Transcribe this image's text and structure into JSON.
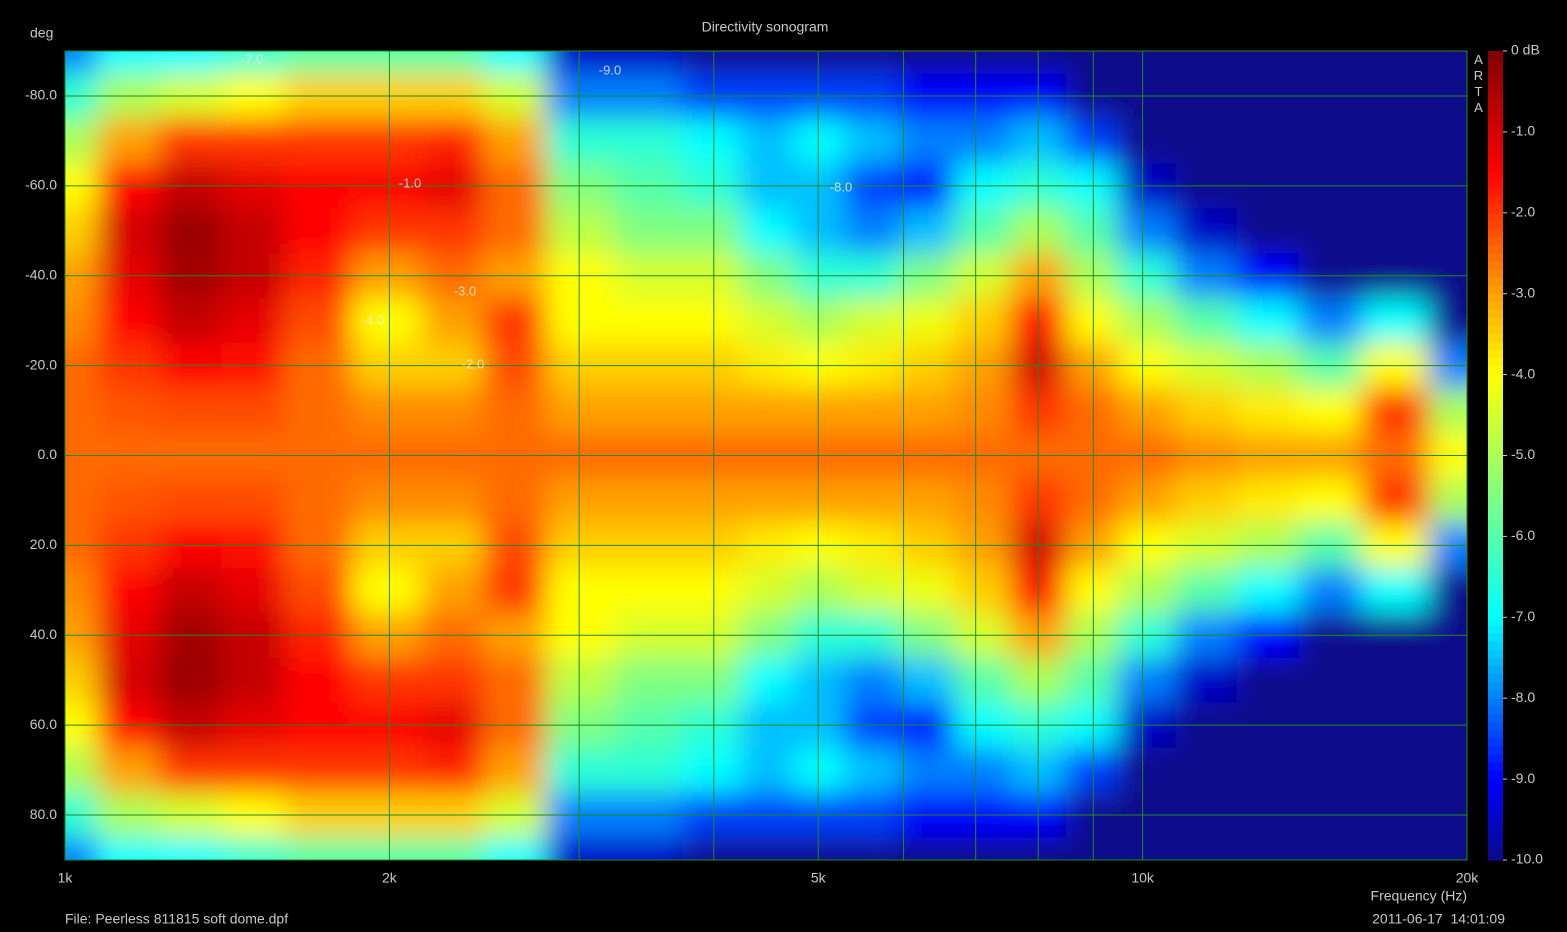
{
  "chart_data": {
    "type": "heatmap",
    "title": "Directivity sonogram",
    "y_label": "deg",
    "x_label": "Frequency (Hz)",
    "file": "File: Peerless 811815 soft dome.dpf",
    "timestamp": "2011-06-17  14:01:09",
    "brand": "ARTA",
    "x_scale": "log",
    "xlim": [
      1000,
      20000
    ],
    "ylim": [
      -90,
      90
    ],
    "zlim": [
      -10,
      0
    ],
    "grid": true,
    "xticks": [
      {
        "value": 1000,
        "label": "1k"
      },
      {
        "value": 2000,
        "label": "2k"
      },
      {
        "value": 5000,
        "label": "5k"
      },
      {
        "value": 10000,
        "label": "10k"
      },
      {
        "value": 20000,
        "label": "20k"
      }
    ],
    "xminor": [
      3000,
      4000,
      6000,
      7000,
      8000,
      9000
    ],
    "yticks": [
      {
        "value": -80,
        "label": "-80.0"
      },
      {
        "value": -60,
        "label": "-60.0"
      },
      {
        "value": -40,
        "label": "-40.0"
      },
      {
        "value": -20,
        "label": "-20.0"
      },
      {
        "value": 0,
        "label": "0.0"
      },
      {
        "value": 20,
        "label": "20.0"
      },
      {
        "value": 40,
        "label": "40.0"
      },
      {
        "value": 60,
        "label": "60.0"
      },
      {
        "value": 80,
        "label": "80.0"
      }
    ],
    "zticks": [
      {
        "value": 0,
        "label": "0 dB"
      },
      {
        "value": -1,
        "label": "-1.0"
      },
      {
        "value": -2,
        "label": "-2.0"
      },
      {
        "value": -3,
        "label": "-3.0"
      },
      {
        "value": -4,
        "label": "-4.0"
      },
      {
        "value": -5,
        "label": "-5.0"
      },
      {
        "value": -6,
        "label": "-6.0"
      },
      {
        "value": -7,
        "label": "-7.0"
      },
      {
        "value": -8,
        "label": "-8.0"
      },
      {
        "value": -9,
        "label": "-9.0"
      },
      {
        "value": -10,
        "label": "-10.0"
      }
    ],
    "contour_labels": [
      "-7.0",
      "-9.0",
      "-1.0",
      "-8.0",
      "-3.0",
      "-4.0",
      "-2.0"
    ],
    "x": [
      1000,
      1150,
      1300,
      1500,
      1700,
      2000,
      2300,
      2600,
      3000,
      3500,
      4000,
      4500,
      5000,
      5600,
      6300,
      7100,
      8000,
      9000,
      10000,
      11500,
      13000,
      15000,
      17000,
      20000
    ],
    "y": [
      -90,
      -80,
      -70,
      -60,
      -50,
      -40,
      -30,
      -20,
      -10,
      0,
      10,
      20,
      30,
      40,
      50,
      60,
      70,
      80,
      90
    ],
    "z": [
      [
        -8,
        -6.5,
        -5,
        -4,
        -3.5,
        -3,
        -2.8,
        -2.5,
        -2.5,
        -2.5,
        -2.5,
        -2.5,
        -2.8,
        -3,
        -3.5,
        -4,
        -5,
        -6.5,
        -8
      ],
      [
        -7,
        -5,
        -3,
        -1.5,
        -1,
        -1.2,
        -1.5,
        -2,
        -2.3,
        -2.5,
        -2.3,
        -2,
        -1.5,
        -1.2,
        -1,
        -1.5,
        -3,
        -5,
        -7
      ],
      [
        -7,
        -4.5,
        -2,
        -0.8,
        -0.3,
        -0.4,
        -0.8,
        -1.5,
        -2.2,
        -2.5,
        -2.2,
        -1.5,
        -0.8,
        -0.4,
        -0.3,
        -0.8,
        -2,
        -4.5,
        -7
      ],
      [
        -6.5,
        -4,
        -2,
        -1.2,
        -0.8,
        -0.8,
        -1.2,
        -1.6,
        -2.2,
        -2.5,
        -2.2,
        -1.6,
        -1.2,
        -0.8,
        -0.8,
        -1.2,
        -2,
        -4,
        -6.5
      ],
      [
        -6,
        -3.5,
        -2,
        -1.5,
        -1.5,
        -1.8,
        -2.2,
        -2.5,
        -2.5,
        -2.5,
        -2.5,
        -2.5,
        -2.2,
        -1.8,
        -1.5,
        -1.5,
        -2,
        -3.5,
        -6
      ],
      [
        -6,
        -3.5,
        -2,
        -1.5,
        -2,
        -3,
        -4,
        -3.5,
        -2.8,
        -2.5,
        -2.8,
        -3.5,
        -4,
        -3,
        -2,
        -1.5,
        -2,
        -3.5,
        -6
      ],
      [
        -6,
        -3.5,
        -1.8,
        -1.2,
        -2,
        -2.5,
        -3,
        -3.5,
        -2.8,
        -2.5,
        -2.8,
        -3.5,
        -3,
        -2.5,
        -2,
        -1.2,
        -1.8,
        -3.5,
        -6
      ],
      [
        -7,
        -4.5,
        -3,
        -2.5,
        -2.5,
        -3,
        -2,
        -2.2,
        -2.5,
        -2.5,
        -2.5,
        -2.2,
        -2,
        -3,
        -2.5,
        -2.5,
        -3,
        -4.5,
        -7
      ],
      [
        -9.5,
        -8,
        -6.5,
        -5.5,
        -4.8,
        -4,
        -4,
        -3.5,
        -3,
        -2.5,
        -3,
        -3.5,
        -4,
        -4,
        -4.8,
        -5.5,
        -6.5,
        -8,
        -9.5
      ],
      [
        -9.5,
        -8,
        -6.5,
        -6,
        -5.5,
        -4.5,
        -4,
        -3.5,
        -3,
        -2.5,
        -3,
        -3.5,
        -4,
        -4.5,
        -5.5,
        -6,
        -6.5,
        -8,
        -9.5
      ],
      [
        -10,
        -8.5,
        -7,
        -6.5,
        -5.5,
        -4.5,
        -4,
        -3.5,
        -3,
        -2.5,
        -3,
        -3.5,
        -4,
        -4.5,
        -5.5,
        -6.5,
        -7,
        -8.5,
        -10
      ],
      [
        -10,
        -8.5,
        -7.5,
        -7.5,
        -7,
        -5.5,
        -4.5,
        -3.8,
        -3,
        -2.5,
        -3,
        -3.8,
        -4.5,
        -5.5,
        -7,
        -7.5,
        -7.5,
        -8.5,
        -10
      ],
      [
        -10,
        -8.5,
        -7,
        -7.5,
        -7.5,
        -6.5,
        -5,
        -4,
        -3,
        -2.5,
        -3,
        -4,
        -5,
        -6.5,
        -7.5,
        -7.5,
        -7,
        -8.5,
        -10
      ],
      [
        -10,
        -8.5,
        -7.5,
        -8.5,
        -8,
        -6.5,
        -4.5,
        -3.8,
        -3,
        -2.5,
        -3,
        -3.8,
        -4.5,
        -6.5,
        -8,
        -8.5,
        -7.5,
        -8.5,
        -10
      ],
      [
        -10,
        -9,
        -8,
        -8.8,
        -7.5,
        -5.5,
        -4.2,
        -3.5,
        -3,
        -2.5,
        -3,
        -3.5,
        -4.2,
        -5.5,
        -7.5,
        -8.8,
        -8,
        -9,
        -10
      ],
      [
        -10,
        -9,
        -8,
        -7,
        -6,
        -4.5,
        -3.5,
        -3,
        -2.8,
        -2.5,
        -2.8,
        -3,
        -3.5,
        -4.5,
        -6,
        -7,
        -8,
        -9,
        -10
      ],
      [
        -10,
        -9,
        -7.5,
        -6.5,
        -5,
        -3,
        -1.5,
        -1,
        -2,
        -2.5,
        -2,
        -1,
        -1.5,
        -3,
        -5,
        -6.5,
        -7.5,
        -9,
        -10
      ],
      [
        -10,
        -10,
        -8.5,
        -7,
        -6,
        -5,
        -4,
        -3,
        -2.5,
        -2.5,
        -2.5,
        -3,
        -4,
        -5,
        -6,
        -7,
        -8.5,
        -10,
        -10
      ],
      [
        -10,
        -10,
        -10,
        -9.5,
        -8,
        -6.5,
        -5,
        -4,
        -3,
        -2.5,
        -3,
        -4,
        -5,
        -6.5,
        -8,
        -9.5,
        -10,
        -10,
        -10
      ],
      [
        -10,
        -10,
        -10,
        -10,
        -9.5,
        -8,
        -6,
        -4.5,
        -3.5,
        -2.8,
        -3.5,
        -4.5,
        -6,
        -8,
        -9.5,
        -10,
        -10,
        -10,
        -10
      ],
      [
        -10,
        -10,
        -10,
        -10,
        -10,
        -9,
        -7,
        -5,
        -3.8,
        -3,
        -3.8,
        -5,
        -7,
        -9,
        -10,
        -10,
        -10,
        -10,
        -10
      ],
      [
        -10,
        -10,
        -10,
        -10,
        -10,
        -10,
        -8,
        -6,
        -4,
        -3,
        -4,
        -6,
        -8,
        -10,
        -10,
        -10,
        -10,
        -10,
        -10
      ],
      [
        -10,
        -10,
        -10,
        -10,
        -10,
        -10,
        -7,
        -4,
        -2,
        -2.5,
        -2,
        -4,
        -7,
        -10,
        -10,
        -10,
        -10,
        -10,
        -10
      ],
      [
        -10,
        -10,
        -10,
        -10,
        -10,
        -10,
        -10,
        -8,
        -5,
        -4,
        -5,
        -8,
        -10,
        -10,
        -10,
        -10,
        -10,
        -10,
        -10
      ]
    ]
  }
}
